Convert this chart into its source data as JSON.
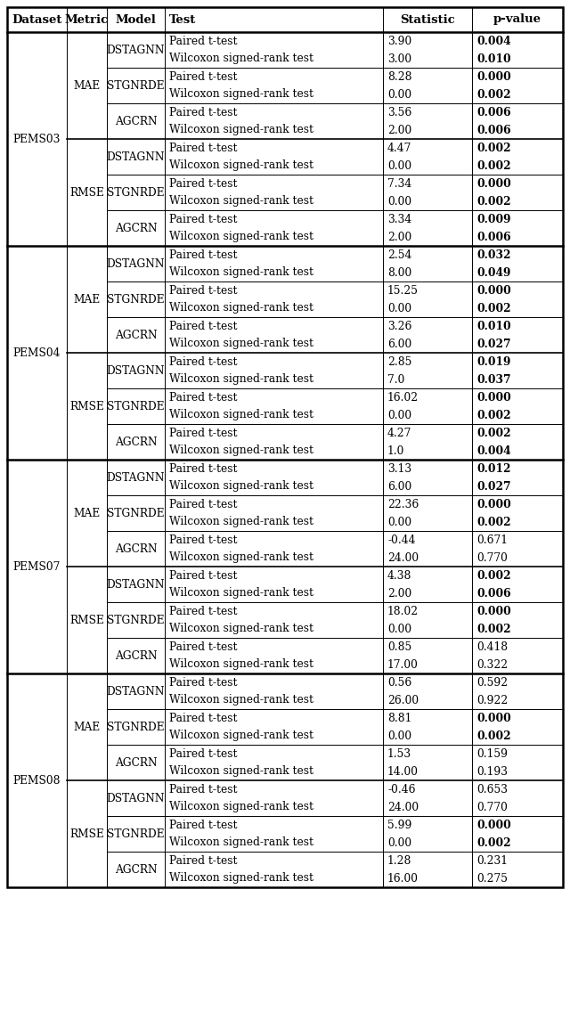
{
  "headers": [
    "Dataset",
    "Metric",
    "Model",
    "Test",
    "Statistic",
    "p-value"
  ],
  "rows": [
    [
      "PEMS03",
      "MAE",
      "DSTAGNN",
      "Paired t-test",
      "3.90",
      "0.004",
      true
    ],
    [
      "",
      "",
      "",
      "Wilcoxon signed-rank test",
      "3.00",
      "0.010",
      true
    ],
    [
      "",
      "",
      "STGNRDE",
      "Paired t-test",
      "8.28",
      "0.000",
      true
    ],
    [
      "",
      "",
      "",
      "Wilcoxon signed-rank test",
      "0.00",
      "0.002",
      true
    ],
    [
      "",
      "",
      "AGCRN",
      "Paired t-test",
      "3.56",
      "0.006",
      true
    ],
    [
      "",
      "",
      "",
      "Wilcoxon signed-rank test",
      "2.00",
      "0.006",
      true
    ],
    [
      "",
      "RMSE",
      "DSTAGNN",
      "Paired t-test",
      "4.47",
      "0.002",
      true
    ],
    [
      "",
      "",
      "",
      "Wilcoxon signed-rank test",
      "0.00",
      "0.002",
      true
    ],
    [
      "",
      "",
      "STGNRDE",
      "Paired t-test",
      "7.34",
      "0.000",
      true
    ],
    [
      "",
      "",
      "",
      "Wilcoxon signed-rank test",
      "0.00",
      "0.002",
      true
    ],
    [
      "",
      "",
      "AGCRN",
      "Paired t-test",
      "3.34",
      "0.009",
      true
    ],
    [
      "",
      "",
      "",
      "Wilcoxon signed-rank test",
      "2.00",
      "0.006",
      true
    ],
    [
      "PEMS04",
      "MAE",
      "DSTAGNN",
      "Paired t-test",
      "2.54",
      "0.032",
      true
    ],
    [
      "",
      "",
      "",
      "Wilcoxon signed-rank test",
      "8.00",
      "0.049",
      true
    ],
    [
      "",
      "",
      "STGNRDE",
      "Paired t-test",
      "15.25",
      "0.000",
      true
    ],
    [
      "",
      "",
      "",
      "Wilcoxon signed-rank test",
      "0.00",
      "0.002",
      true
    ],
    [
      "",
      "",
      "AGCRN",
      "Paired t-test",
      "3.26",
      "0.010",
      true
    ],
    [
      "",
      "",
      "",
      "Wilcoxon signed-rank test",
      "6.00",
      "0.027",
      true
    ],
    [
      "",
      "RMSE",
      "DSTAGNN",
      "Paired t-test",
      "2.85",
      "0.019",
      true
    ],
    [
      "",
      "",
      "",
      "Wilcoxon signed-rank test",
      "7.0",
      "0.037",
      true
    ],
    [
      "",
      "",
      "STGNRDE",
      "Paired t-test",
      "16.02",
      "0.000",
      true
    ],
    [
      "",
      "",
      "",
      "Wilcoxon signed-rank test",
      "0.00",
      "0.002",
      true
    ],
    [
      "",
      "",
      "AGCRN",
      "Paired t-test",
      "4.27",
      "0.002",
      true
    ],
    [
      "",
      "",
      "",
      "Wilcoxon signed-rank test",
      "1.0",
      "0.004",
      true
    ],
    [
      "PEMS07",
      "MAE",
      "DSTAGNN",
      "Paired t-test",
      "3.13",
      "0.012",
      true
    ],
    [
      "",
      "",
      "",
      "Wilcoxon signed-rank test",
      "6.00",
      "0.027",
      true
    ],
    [
      "",
      "",
      "STGNRDE",
      "Paired t-test",
      "22.36",
      "0.000",
      true
    ],
    [
      "",
      "",
      "",
      "Wilcoxon signed-rank test",
      "0.00",
      "0.002",
      true
    ],
    [
      "",
      "",
      "AGCRN",
      "Paired t-test",
      "-0.44",
      "0.671",
      false
    ],
    [
      "",
      "",
      "",
      "Wilcoxon signed-rank test",
      "24.00",
      "0.770",
      false
    ],
    [
      "",
      "RMSE",
      "DSTAGNN",
      "Paired t-test",
      "4.38",
      "0.002",
      true
    ],
    [
      "",
      "",
      "",
      "Wilcoxon signed-rank test",
      "2.00",
      "0.006",
      true
    ],
    [
      "",
      "",
      "STGNRDE",
      "Paired t-test",
      "18.02",
      "0.000",
      true
    ],
    [
      "",
      "",
      "",
      "Wilcoxon signed-rank test",
      "0.00",
      "0.002",
      true
    ],
    [
      "",
      "",
      "AGCRN",
      "Paired t-test",
      "0.85",
      "0.418",
      false
    ],
    [
      "",
      "",
      "",
      "Wilcoxon signed-rank test",
      "17.00",
      "0.322",
      false
    ],
    [
      "PEMS08",
      "MAE",
      "DSTAGNN",
      "Paired t-test",
      "0.56",
      "0.592",
      false
    ],
    [
      "",
      "",
      "",
      "Wilcoxon signed-rank test",
      "26.00",
      "0.922",
      false
    ],
    [
      "",
      "",
      "STGNRDE",
      "Paired t-test",
      "8.81",
      "0.000",
      true
    ],
    [
      "",
      "",
      "",
      "Wilcoxon signed-rank test",
      "0.00",
      "0.002",
      true
    ],
    [
      "",
      "",
      "AGCRN",
      "Paired t-test",
      "1.53",
      "0.159",
      false
    ],
    [
      "",
      "",
      "",
      "Wilcoxon signed-rank test",
      "14.00",
      "0.193",
      false
    ],
    [
      "",
      "RMSE",
      "DSTAGNN",
      "Paired t-test",
      "-0.46",
      "0.653",
      false
    ],
    [
      "",
      "",
      "",
      "Wilcoxon signed-rank test",
      "24.00",
      "0.770",
      false
    ],
    [
      "",
      "",
      "STGNRDE",
      "Paired t-test",
      "5.99",
      "0.000",
      true
    ],
    [
      "",
      "",
      "",
      "Wilcoxon signed-rank test",
      "0.00",
      "0.002",
      true
    ],
    [
      "",
      "",
      "AGCRN",
      "Paired t-test",
      "1.28",
      "0.231",
      false
    ],
    [
      "",
      "",
      "",
      "Wilcoxon signed-rank test",
      "16.00",
      "0.275",
      false
    ]
  ],
  "dataset_info": [
    [
      "PEMS03",
      0,
      11
    ],
    [
      "PEMS04",
      12,
      23
    ],
    [
      "PEMS07",
      24,
      35
    ],
    [
      "PEMS08",
      36,
      47
    ]
  ],
  "metric_info": [
    [
      "MAE",
      0,
      5
    ],
    [
      "RMSE",
      6,
      11
    ],
    [
      "MAE",
      12,
      17
    ],
    [
      "RMSE",
      18,
      23
    ],
    [
      "MAE",
      24,
      29
    ],
    [
      "RMSE",
      30,
      35
    ],
    [
      "MAE",
      36,
      41
    ],
    [
      "RMSE",
      42,
      47
    ]
  ],
  "model_info": [
    [
      "DSTAGNN",
      0,
      1
    ],
    [
      "STGNRDE",
      2,
      3
    ],
    [
      "AGCRN",
      4,
      5
    ],
    [
      "DSTAGNN",
      6,
      7
    ],
    [
      "STGNRDE",
      8,
      9
    ],
    [
      "AGCRN",
      10,
      11
    ],
    [
      "DSTAGNN",
      12,
      13
    ],
    [
      "STGNRDE",
      14,
      15
    ],
    [
      "AGCRN",
      16,
      17
    ],
    [
      "DSTAGNN",
      18,
      19
    ],
    [
      "STGNRDE",
      20,
      21
    ],
    [
      "AGCRN",
      22,
      23
    ],
    [
      "DSTAGNN",
      24,
      25
    ],
    [
      "STGNRDE",
      26,
      27
    ],
    [
      "AGCRN",
      28,
      29
    ],
    [
      "DSTAGNN",
      30,
      31
    ],
    [
      "STGNRDE",
      32,
      33
    ],
    [
      "AGCRN",
      34,
      35
    ],
    [
      "DSTAGNN",
      36,
      37
    ],
    [
      "STGNRDE",
      38,
      39
    ],
    [
      "AGCRN",
      40,
      41
    ],
    [
      "DSTAGNN",
      42,
      43
    ],
    [
      "STGNRDE",
      44,
      45
    ],
    [
      "AGCRN",
      46,
      47
    ]
  ],
  "dataset_boundaries": [
    12,
    24,
    36
  ],
  "metric_boundaries": [
    6,
    18,
    30,
    42
  ],
  "model_boundaries": [
    2,
    4,
    8,
    10,
    14,
    16,
    20,
    22,
    26,
    28,
    32,
    34,
    38,
    40,
    44,
    46
  ]
}
